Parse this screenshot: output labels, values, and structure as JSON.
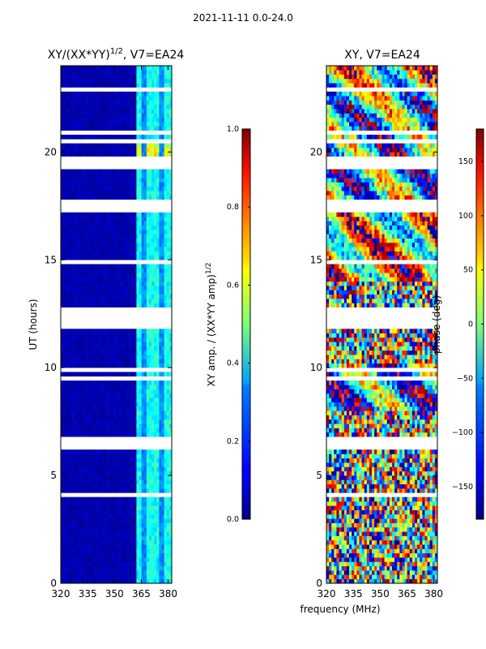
{
  "chart_data": {
    "type": "heatmap",
    "suptitle": "2021-11-11 0.0-24.0",
    "shared_xlabel": "frequency (MHz)",
    "panels": [
      {
        "title_main": "XY/(XX*YY)",
        "title_sup": "1/2",
        "title_tail": ", V7=EA24",
        "ylabel": "UT (hours)",
        "xlim": [
          320,
          382
        ],
        "ylim": [
          0,
          24
        ],
        "xticks": [
          "320",
          "335",
          "350",
          "365",
          "380"
        ],
        "yticks": [
          "0",
          "5",
          "10",
          "15",
          "20"
        ],
        "quantity": "amplitude",
        "colorbar": {
          "label_main": "XY amp. / (XX*YY amp)",
          "label_sup": "1/2",
          "range": [
            0.0,
            1.0
          ],
          "ticks": [
            "0.0",
            "0.2",
            "0.4",
            "0.6",
            "0.8",
            "1.0"
          ]
        }
      },
      {
        "title_main": "XY, V7=EA24",
        "title_sup": "",
        "title_tail": "",
        "ylabel": "",
        "xlim": [
          320,
          382
        ],
        "ylim": [
          0,
          24
        ],
        "xticks": [
          "320",
          "335",
          "350",
          "365",
          "380"
        ],
        "yticks": [
          "0",
          "5",
          "10",
          "15",
          "20"
        ],
        "quantity": "phase",
        "colorbar": {
          "label_main": "phase (deg)",
          "label_sup": "",
          "range": [
            -180,
            180
          ],
          "ticks": [
            "−150",
            "−100",
            "−50",
            "0",
            "50",
            "100",
            "150"
          ]
        }
      }
    ]
  }
}
